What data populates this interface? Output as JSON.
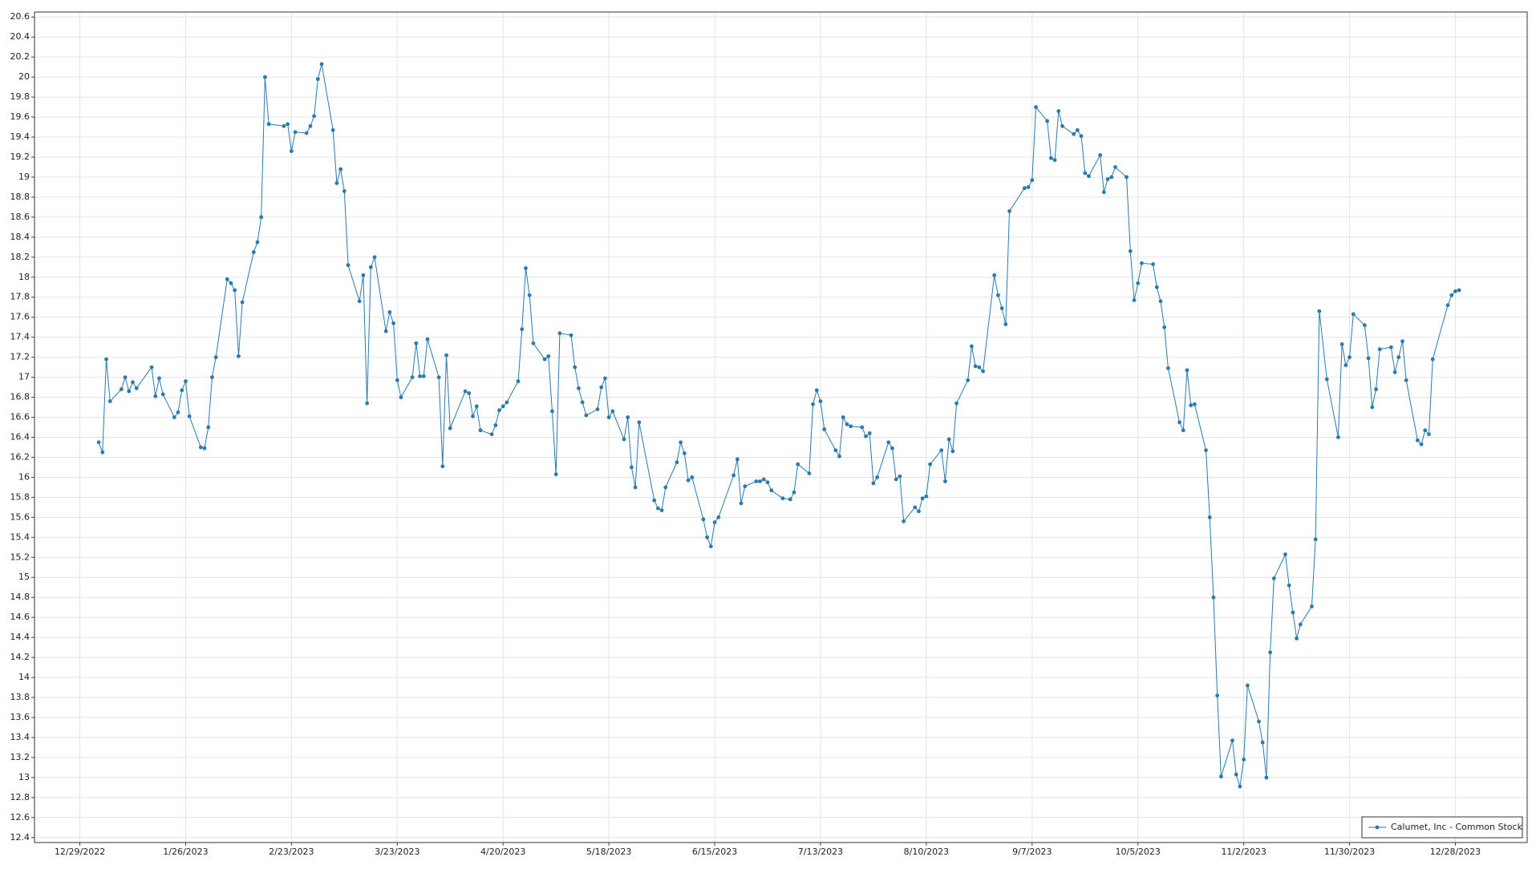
{
  "chart_data": {
    "type": "line",
    "x": [
      "1/3/2023",
      "1/4/2023",
      "1/5/2023",
      "1/6/2023",
      "1/9/2023",
      "1/10/2023",
      "1/11/2023",
      "1/12/2023",
      "1/13/2023",
      "1/17/2023",
      "1/18/2023",
      "1/19/2023",
      "1/20/2023",
      "1/23/2023",
      "1/24/2023",
      "1/25/2023",
      "1/26/2023",
      "1/27/2023",
      "1/30/2023",
      "1/31/2023",
      "2/1/2023",
      "2/2/2023",
      "2/3/2023",
      "2/6/2023",
      "2/7/2023",
      "2/8/2023",
      "2/9/2023",
      "2/10/2023",
      "2/13/2023",
      "2/14/2023",
      "2/15/2023",
      "2/16/2023",
      "2/17/2023",
      "2/21/2023",
      "2/22/2023",
      "2/23/2023",
      "2/24/2023",
      "2/27/2023",
      "2/28/2023",
      "3/1/2023",
      "3/2/2023",
      "3/3/2023",
      "3/6/2023",
      "3/7/2023",
      "3/8/2023",
      "3/9/2023",
      "3/10/2023",
      "3/13/2023",
      "3/14/2023",
      "3/15/2023",
      "3/16/2023",
      "3/17/2023",
      "3/20/2023",
      "3/21/2023",
      "3/22/2023",
      "3/23/2023",
      "3/24/2023",
      "3/27/2023",
      "3/28/2023",
      "3/29/2023",
      "3/30/2023",
      "3/31/2023",
      "4/3/2023",
      "4/4/2023",
      "4/5/2023",
      "4/6/2023",
      "4/10/2023",
      "4/11/2023",
      "4/12/2023",
      "4/13/2023",
      "4/14/2023",
      "4/17/2023",
      "4/18/2023",
      "4/19/2023",
      "4/20/2023",
      "4/21/2023",
      "4/24/2023",
      "4/25/2023",
      "4/26/2023",
      "4/27/2023",
      "4/28/2023",
      "5/1/2023",
      "5/2/2023",
      "5/3/2023",
      "5/4/2023",
      "5/5/2023",
      "5/8/2023",
      "5/9/2023",
      "5/10/2023",
      "5/11/2023",
      "5/12/2023",
      "5/15/2023",
      "5/16/2023",
      "5/17/2023",
      "5/18/2023",
      "5/19/2023",
      "5/22/2023",
      "5/23/2023",
      "5/24/2023",
      "5/25/2023",
      "5/26/2023",
      "5/30/2023",
      "5/31/2023",
      "6/1/2023",
      "6/2/2023",
      "6/5/2023",
      "6/6/2023",
      "6/7/2023",
      "6/8/2023",
      "6/9/2023",
      "6/12/2023",
      "6/13/2023",
      "6/14/2023",
      "6/15/2023",
      "6/16/2023",
      "6/20/2023",
      "6/21/2023",
      "6/22/2023",
      "6/23/2023",
      "6/26/2023",
      "6/27/2023",
      "6/28/2023",
      "6/29/2023",
      "6/30/2023",
      "7/3/2023",
      "7/5/2023",
      "7/6/2023",
      "7/7/2023",
      "7/10/2023",
      "7/11/2023",
      "7/12/2023",
      "7/13/2023",
      "7/14/2023",
      "7/17/2023",
      "7/18/2023",
      "7/19/2023",
      "7/20/2023",
      "7/21/2023",
      "7/24/2023",
      "7/25/2023",
      "7/26/2023",
      "7/27/2023",
      "7/28/2023",
      "7/31/2023",
      "8/1/2023",
      "8/2/2023",
      "8/3/2023",
      "8/4/2023",
      "8/7/2023",
      "8/8/2023",
      "8/9/2023",
      "8/10/2023",
      "8/11/2023",
      "8/14/2023",
      "8/15/2023",
      "8/16/2023",
      "8/17/2023",
      "8/18/2023",
      "8/21/2023",
      "8/22/2023",
      "8/23/2023",
      "8/24/2023",
      "8/25/2023",
      "8/28/2023",
      "8/29/2023",
      "8/30/2023",
      "8/31/2023",
      "9/1/2023",
      "9/5/2023",
      "9/6/2023",
      "9/7/2023",
      "9/8/2023",
      "9/11/2023",
      "9/12/2023",
      "9/13/2023",
      "9/14/2023",
      "9/15/2023",
      "9/18/2023",
      "9/19/2023",
      "9/20/2023",
      "9/21/2023",
      "9/22/2023",
      "9/25/2023",
      "9/26/2023",
      "9/27/2023",
      "9/28/2023",
      "9/29/2023",
      "10/2/2023",
      "10/3/2023",
      "10/4/2023",
      "10/5/2023",
      "10/6/2023",
      "10/9/2023",
      "10/10/2023",
      "10/11/2023",
      "10/12/2023",
      "10/13/2023",
      "10/16/2023",
      "10/17/2023",
      "10/18/2023",
      "10/19/2023",
      "10/20/2023",
      "10/23/2023",
      "10/24/2023",
      "10/25/2023",
      "10/26/2023",
      "10/27/2023",
      "10/30/2023",
      "10/31/2023",
      "11/1/2023",
      "11/2/2023",
      "11/3/2023",
      "11/6/2023",
      "11/7/2023",
      "11/8/2023",
      "11/9/2023",
      "11/10/2023",
      "11/13/2023",
      "11/14/2023",
      "11/15/2023",
      "11/16/2023",
      "11/17/2023",
      "11/20/2023",
      "11/21/2023",
      "11/22/2023",
      "11/24/2023",
      "11/27/2023",
      "11/28/2023",
      "11/29/2023",
      "11/30/2023",
      "12/1/2023",
      "12/4/2023",
      "12/5/2023",
      "12/6/2023",
      "12/7/2023",
      "12/8/2023",
      "12/11/2023",
      "12/12/2023",
      "12/13/2023",
      "12/14/2023",
      "12/15/2023",
      "12/18/2023",
      "12/19/2023",
      "12/20/2023",
      "12/21/2023",
      "12/22/2023",
      "12/26/2023",
      "12/27/2023",
      "12/28/2023",
      "12/29/2023"
    ],
    "series": [
      {
        "name": "Calumet, Inc - Common Stock",
        "color": "#2a7ab0",
        "values": [
          16.35,
          16.25,
          17.18,
          16.76,
          16.88,
          17.0,
          16.86,
          16.95,
          16.89,
          17.1,
          16.81,
          16.99,
          16.83,
          16.6,
          16.65,
          16.87,
          16.96,
          16.61,
          16.3,
          16.29,
          16.5,
          17.0,
          17.2,
          17.98,
          17.94,
          17.87,
          17.21,
          17.75,
          18.25,
          18.35,
          18.6,
          20.0,
          19.53,
          19.51,
          19.53,
          19.26,
          19.45,
          19.44,
          19.51,
          19.61,
          19.98,
          20.13,
          19.47,
          18.94,
          19.08,
          18.86,
          18.12,
          17.76,
          18.02,
          16.74,
          18.1,
          18.2,
          17.46,
          17.65,
          17.54,
          16.97,
          16.8,
          17.0,
          17.34,
          17.01,
          17.01,
          17.38,
          17.0,
          16.11,
          17.22,
          16.49,
          16.86,
          16.84,
          16.61,
          16.71,
          16.47,
          16.43,
          16.52,
          16.67,
          16.71,
          16.75,
          16.96,
          17.48,
          18.09,
          17.82,
          17.34,
          17.18,
          17.21,
          16.66,
          16.03,
          17.44,
          17.42,
          17.1,
          16.89,
          16.75,
          16.62,
          16.68,
          16.9,
          16.99,
          16.6,
          16.66,
          16.38,
          16.6,
          16.1,
          15.9,
          16.55,
          15.77,
          15.69,
          15.67,
          15.9,
          16.15,
          16.35,
          16.24,
          15.97,
          16.0,
          15.58,
          15.4,
          15.31,
          15.55,
          15.6,
          16.02,
          16.18,
          15.74,
          15.91,
          15.96,
          15.96,
          15.98,
          15.95,
          15.87,
          15.79,
          15.78,
          15.85,
          16.13,
          16.04,
          16.73,
          16.87,
          16.76,
          16.48,
          16.27,
          16.21,
          16.6,
          16.53,
          16.51,
          16.5,
          16.41,
          16.44,
          15.94,
          16.0,
          16.35,
          16.29,
          15.98,
          16.01,
          15.56,
          15.7,
          15.66,
          15.79,
          15.81,
          16.13,
          16.27,
          15.96,
          16.38,
          16.26,
          16.74,
          16.97,
          17.31,
          17.11,
          17.1,
          17.06,
          18.02,
          17.82,
          17.69,
          17.53,
          18.66,
          18.89,
          18.9,
          18.97,
          19.7,
          19.56,
          19.19,
          19.17,
          19.66,
          19.51,
          19.43,
          19.47,
          19.41,
          19.04,
          19.01,
          19.22,
          18.85,
          18.98,
          19.0,
          19.1,
          19.0,
          18.26,
          17.77,
          17.94,
          18.14,
          18.13,
          17.9,
          17.76,
          17.5,
          17.09,
          16.55,
          16.47,
          17.07,
          16.72,
          16.73,
          16.27,
          15.6,
          14.8,
          13.82,
          13.01,
          13.37,
          13.03,
          12.91,
          13.18,
          13.92,
          13.56,
          13.35,
          13.0,
          14.25,
          14.99,
          15.23,
          14.92,
          14.65,
          14.39,
          14.53,
          14.71,
          15.38,
          17.66,
          16.98,
          16.4,
          17.33,
          17.12,
          17.2,
          17.63,
          17.52,
          17.19,
          16.7,
          16.88,
          17.28,
          17.3,
          17.05,
          17.2,
          17.36,
          16.97,
          16.37,
          16.33,
          16.47,
          16.43,
          17.18,
          17.72,
          17.82,
          17.86,
          17.87
        ]
      }
    ],
    "xlim": [
      "12/17/2022",
      "1/16/2024"
    ],
    "xticks": [
      "12/29/2022",
      "1/26/2023",
      "2/23/2023",
      "3/23/2023",
      "4/20/2023",
      "5/18/2023",
      "6/15/2023",
      "7/13/2023",
      "8/10/2023",
      "9/7/2023",
      "10/5/2023",
      "11/2/2023",
      "11/30/2023",
      "12/28/2023"
    ],
    "ylim": [
      12.35,
      20.65
    ],
    "yticks": [
      12.4,
      12.6,
      12.8,
      13,
      13.2,
      13.4,
      13.6,
      13.8,
      14,
      14.2,
      14.4,
      14.6,
      14.8,
      15,
      15.2,
      15.4,
      15.6,
      15.8,
      16,
      16.2,
      16.4,
      16.6,
      16.8,
      17,
      17.2,
      17.4,
      17.6,
      17.8,
      18,
      18.2,
      18.4,
      18.6,
      18.8,
      19,
      19.2,
      19.4,
      19.6,
      19.8,
      20,
      20.2,
      20.4,
      20.6
    ],
    "grid": true,
    "legend": "bottom-right"
  }
}
